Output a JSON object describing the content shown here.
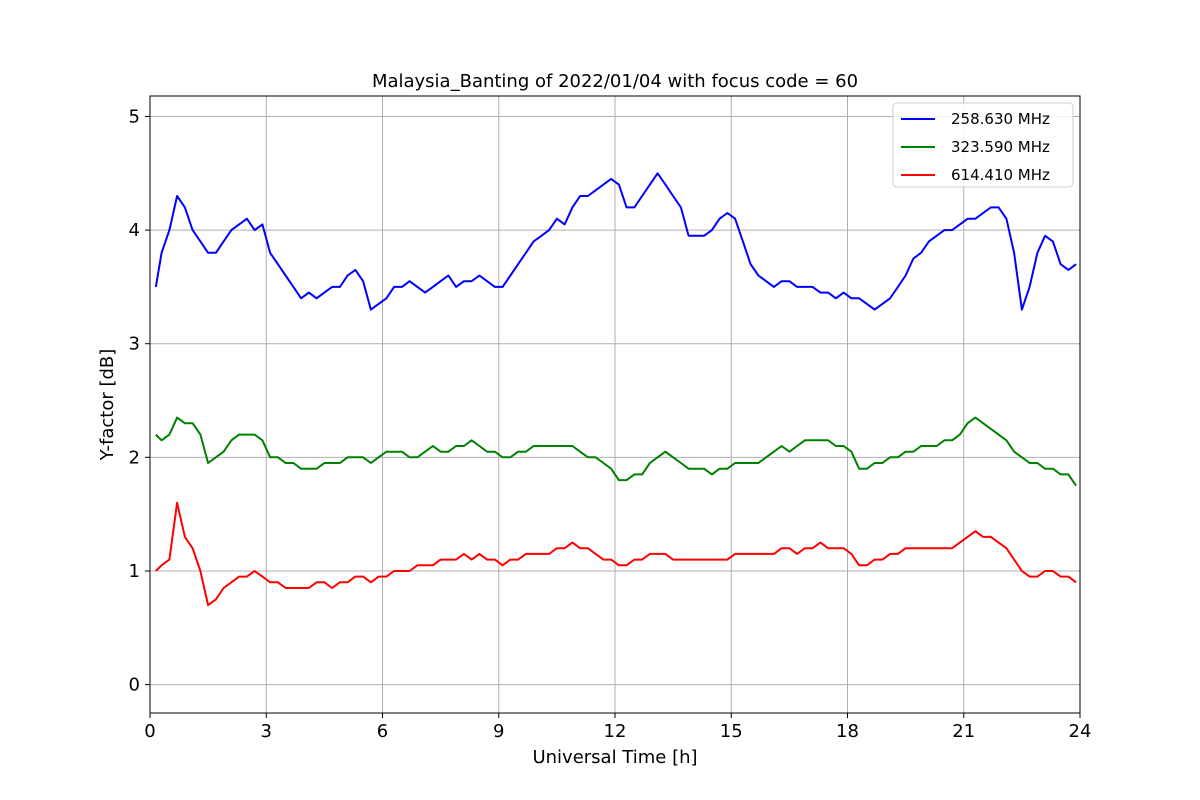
{
  "chart_data": {
    "type": "line",
    "title": "Malaysia_Banting of 2022/01/04 with focus code = 60",
    "xlabel": "Universal Time [h]",
    "ylabel": "Y-factor [dB]",
    "xlim": [
      0,
      24
    ],
    "ylim": [
      -0.25,
      5.18
    ],
    "xticks": [
      0,
      3,
      6,
      9,
      12,
      15,
      18,
      21,
      24
    ],
    "yticks": [
      0,
      1,
      2,
      3,
      4,
      5
    ],
    "grid": true,
    "legend_position": "top-right",
    "series": [
      {
        "name": "258.630 MHz",
        "color": "#0000ff",
        "x": [
          0.15,
          0.3,
          0.5,
          0.7,
          0.9,
          1.1,
          1.3,
          1.5,
          1.7,
          1.9,
          2.1,
          2.3,
          2.5,
          2.7,
          2.9,
          3.1,
          3.3,
          3.5,
          3.7,
          3.9,
          4.1,
          4.3,
          4.5,
          4.7,
          4.9,
          5.1,
          5.3,
          5.5,
          5.7,
          5.9,
          6.1,
          6.3,
          6.5,
          6.7,
          6.9,
          7.1,
          7.3,
          7.5,
          7.7,
          7.9,
          8.1,
          8.3,
          8.5,
          8.7,
          8.9,
          9.1,
          9.3,
          9.5,
          9.7,
          9.9,
          10.1,
          10.3,
          10.5,
          10.7,
          10.9,
          11.1,
          11.3,
          11.5,
          11.7,
          11.9,
          12.1,
          12.3,
          12.5,
          12.7,
          12.9,
          13.1,
          13.3,
          13.5,
          13.7,
          13.9,
          14.1,
          14.3,
          14.5,
          14.7,
          14.9,
          15.1,
          15.3,
          15.5,
          15.7,
          15.9,
          16.1,
          16.3,
          16.5,
          16.7,
          16.9,
          17.1,
          17.3,
          17.5,
          17.7,
          17.9,
          18.1,
          18.3,
          18.5,
          18.7,
          18.9,
          19.1,
          19.3,
          19.5,
          19.7,
          19.9,
          20.1,
          20.3,
          20.5,
          20.7,
          20.9,
          21.1,
          21.3,
          21.5,
          21.7,
          21.9,
          22.1,
          22.3,
          22.5,
          22.7,
          22.9,
          23.1,
          23.3,
          23.5,
          23.7,
          23.9
        ],
        "y": [
          3.5,
          3.8,
          4.0,
          4.3,
          4.2,
          4.0,
          3.9,
          3.8,
          3.8,
          3.9,
          4.0,
          4.05,
          4.1,
          4.0,
          4.05,
          3.8,
          3.7,
          3.6,
          3.5,
          3.4,
          3.45,
          3.4,
          3.45,
          3.5,
          3.5,
          3.6,
          3.65,
          3.55,
          3.3,
          3.35,
          3.4,
          3.5,
          3.5,
          3.55,
          3.5,
          3.45,
          3.5,
          3.55,
          3.6,
          3.5,
          3.55,
          3.55,
          3.6,
          3.55,
          3.5,
          3.5,
          3.6,
          3.7,
          3.8,
          3.9,
          3.95,
          4.0,
          4.1,
          4.05,
          4.2,
          4.3,
          4.3,
          4.35,
          4.4,
          4.45,
          4.4,
          4.2,
          4.2,
          4.3,
          4.4,
          4.5,
          4.4,
          4.3,
          4.2,
          3.95,
          3.95,
          3.95,
          4.0,
          4.1,
          4.15,
          4.1,
          3.9,
          3.7,
          3.6,
          3.55,
          3.5,
          3.55,
          3.55,
          3.5,
          3.5,
          3.5,
          3.45,
          3.45,
          3.4,
          3.45,
          3.4,
          3.4,
          3.35,
          3.3,
          3.35,
          3.4,
          3.5,
          3.6,
          3.75,
          3.8,
          3.9,
          3.95,
          4.0,
          4.0,
          4.05,
          4.1,
          4.1,
          4.15,
          4.2,
          4.2,
          4.1,
          3.8,
          3.3,
          3.5,
          3.8,
          3.95,
          3.9,
          3.7,
          3.65,
          3.7
        ]
      },
      {
        "name": "323.590 MHz",
        "color": "#008000",
        "x": [
          0.15,
          0.3,
          0.5,
          0.7,
          0.9,
          1.1,
          1.3,
          1.5,
          1.7,
          1.9,
          2.1,
          2.3,
          2.5,
          2.7,
          2.9,
          3.1,
          3.3,
          3.5,
          3.7,
          3.9,
          4.1,
          4.3,
          4.5,
          4.7,
          4.9,
          5.1,
          5.3,
          5.5,
          5.7,
          5.9,
          6.1,
          6.3,
          6.5,
          6.7,
          6.9,
          7.1,
          7.3,
          7.5,
          7.7,
          7.9,
          8.1,
          8.3,
          8.5,
          8.7,
          8.9,
          9.1,
          9.3,
          9.5,
          9.7,
          9.9,
          10.1,
          10.3,
          10.5,
          10.7,
          10.9,
          11.1,
          11.3,
          11.5,
          11.7,
          11.9,
          12.1,
          12.3,
          12.5,
          12.7,
          12.9,
          13.1,
          13.3,
          13.5,
          13.7,
          13.9,
          14.1,
          14.3,
          14.5,
          14.7,
          14.9,
          15.1,
          15.3,
          15.5,
          15.7,
          15.9,
          16.1,
          16.3,
          16.5,
          16.7,
          16.9,
          17.1,
          17.3,
          17.5,
          17.7,
          17.9,
          18.1,
          18.3,
          18.5,
          18.7,
          18.9,
          19.1,
          19.3,
          19.5,
          19.7,
          19.9,
          20.1,
          20.3,
          20.5,
          20.7,
          20.9,
          21.1,
          21.3,
          21.5,
          21.7,
          21.9,
          22.1,
          22.3,
          22.5,
          22.7,
          22.9,
          23.1,
          23.3,
          23.5,
          23.7,
          23.9
        ],
        "y": [
          2.2,
          2.15,
          2.2,
          2.35,
          2.3,
          2.3,
          2.2,
          1.95,
          2.0,
          2.05,
          2.15,
          2.2,
          2.2,
          2.2,
          2.15,
          2.0,
          2.0,
          1.95,
          1.95,
          1.9,
          1.9,
          1.9,
          1.95,
          1.95,
          1.95,
          2.0,
          2.0,
          2.0,
          1.95,
          2.0,
          2.05,
          2.05,
          2.05,
          2.0,
          2.0,
          2.05,
          2.1,
          2.05,
          2.05,
          2.1,
          2.1,
          2.15,
          2.1,
          2.05,
          2.05,
          2.0,
          2.0,
          2.05,
          2.05,
          2.1,
          2.1,
          2.1,
          2.1,
          2.1,
          2.1,
          2.05,
          2.0,
          2.0,
          1.95,
          1.9,
          1.8,
          1.8,
          1.85,
          1.85,
          1.95,
          2.0,
          2.05,
          2.0,
          1.95,
          1.9,
          1.9,
          1.9,
          1.85,
          1.9,
          1.9,
          1.95,
          1.95,
          1.95,
          1.95,
          2.0,
          2.05,
          2.1,
          2.05,
          2.1,
          2.15,
          2.15,
          2.15,
          2.15,
          2.1,
          2.1,
          2.05,
          1.9,
          1.9,
          1.95,
          1.95,
          2.0,
          2.0,
          2.05,
          2.05,
          2.1,
          2.1,
          2.1,
          2.15,
          2.15,
          2.2,
          2.3,
          2.35,
          2.3,
          2.25,
          2.2,
          2.15,
          2.05,
          2.0,
          1.95,
          1.95,
          1.9,
          1.9,
          1.85,
          1.85,
          1.75
        ]
      },
      {
        "name": "614.410 MHz",
        "color": "#ff0000",
        "x": [
          0.15,
          0.3,
          0.5,
          0.7,
          0.9,
          1.1,
          1.3,
          1.5,
          1.7,
          1.9,
          2.1,
          2.3,
          2.5,
          2.7,
          2.9,
          3.1,
          3.3,
          3.5,
          3.7,
          3.9,
          4.1,
          4.3,
          4.5,
          4.7,
          4.9,
          5.1,
          5.3,
          5.5,
          5.7,
          5.9,
          6.1,
          6.3,
          6.5,
          6.7,
          6.9,
          7.1,
          7.3,
          7.5,
          7.7,
          7.9,
          8.1,
          8.3,
          8.5,
          8.7,
          8.9,
          9.1,
          9.3,
          9.5,
          9.7,
          9.9,
          10.1,
          10.3,
          10.5,
          10.7,
          10.9,
          11.1,
          11.3,
          11.5,
          11.7,
          11.9,
          12.1,
          12.3,
          12.5,
          12.7,
          12.9,
          13.1,
          13.3,
          13.5,
          13.7,
          13.9,
          14.1,
          14.3,
          14.5,
          14.7,
          14.9,
          15.1,
          15.3,
          15.5,
          15.7,
          15.9,
          16.1,
          16.3,
          16.5,
          16.7,
          16.9,
          17.1,
          17.3,
          17.5,
          17.7,
          17.9,
          18.1,
          18.3,
          18.5,
          18.7,
          18.9,
          19.1,
          19.3,
          19.5,
          19.7,
          19.9,
          20.1,
          20.3,
          20.5,
          20.7,
          20.9,
          21.1,
          21.3,
          21.5,
          21.7,
          21.9,
          22.1,
          22.3,
          22.5,
          22.7,
          22.9,
          23.1,
          23.3,
          23.5,
          23.7,
          23.9
        ],
        "y": [
          1.0,
          1.05,
          1.1,
          1.6,
          1.3,
          1.2,
          1.0,
          0.7,
          0.75,
          0.85,
          0.9,
          0.95,
          0.95,
          1.0,
          0.95,
          0.9,
          0.9,
          0.85,
          0.85,
          0.85,
          0.85,
          0.9,
          0.9,
          0.85,
          0.9,
          0.9,
          0.95,
          0.95,
          0.9,
          0.95,
          0.95,
          1.0,
          1.0,
          1.0,
          1.05,
          1.05,
          1.05,
          1.1,
          1.1,
          1.1,
          1.15,
          1.1,
          1.15,
          1.1,
          1.1,
          1.05,
          1.1,
          1.1,
          1.15,
          1.15,
          1.15,
          1.15,
          1.2,
          1.2,
          1.25,
          1.2,
          1.2,
          1.15,
          1.1,
          1.1,
          1.05,
          1.05,
          1.1,
          1.1,
          1.15,
          1.15,
          1.15,
          1.1,
          1.1,
          1.1,
          1.1,
          1.1,
          1.1,
          1.1,
          1.1,
          1.15,
          1.15,
          1.15,
          1.15,
          1.15,
          1.15,
          1.2,
          1.2,
          1.15,
          1.2,
          1.2,
          1.25,
          1.2,
          1.2,
          1.2,
          1.15,
          1.05,
          1.05,
          1.1,
          1.1,
          1.15,
          1.15,
          1.2,
          1.2,
          1.2,
          1.2,
          1.2,
          1.2,
          1.2,
          1.25,
          1.3,
          1.35,
          1.3,
          1.3,
          1.25,
          1.2,
          1.1,
          1.0,
          0.95,
          0.95,
          1.0,
          1.0,
          0.95,
          0.95,
          0.9
        ]
      }
    ]
  }
}
